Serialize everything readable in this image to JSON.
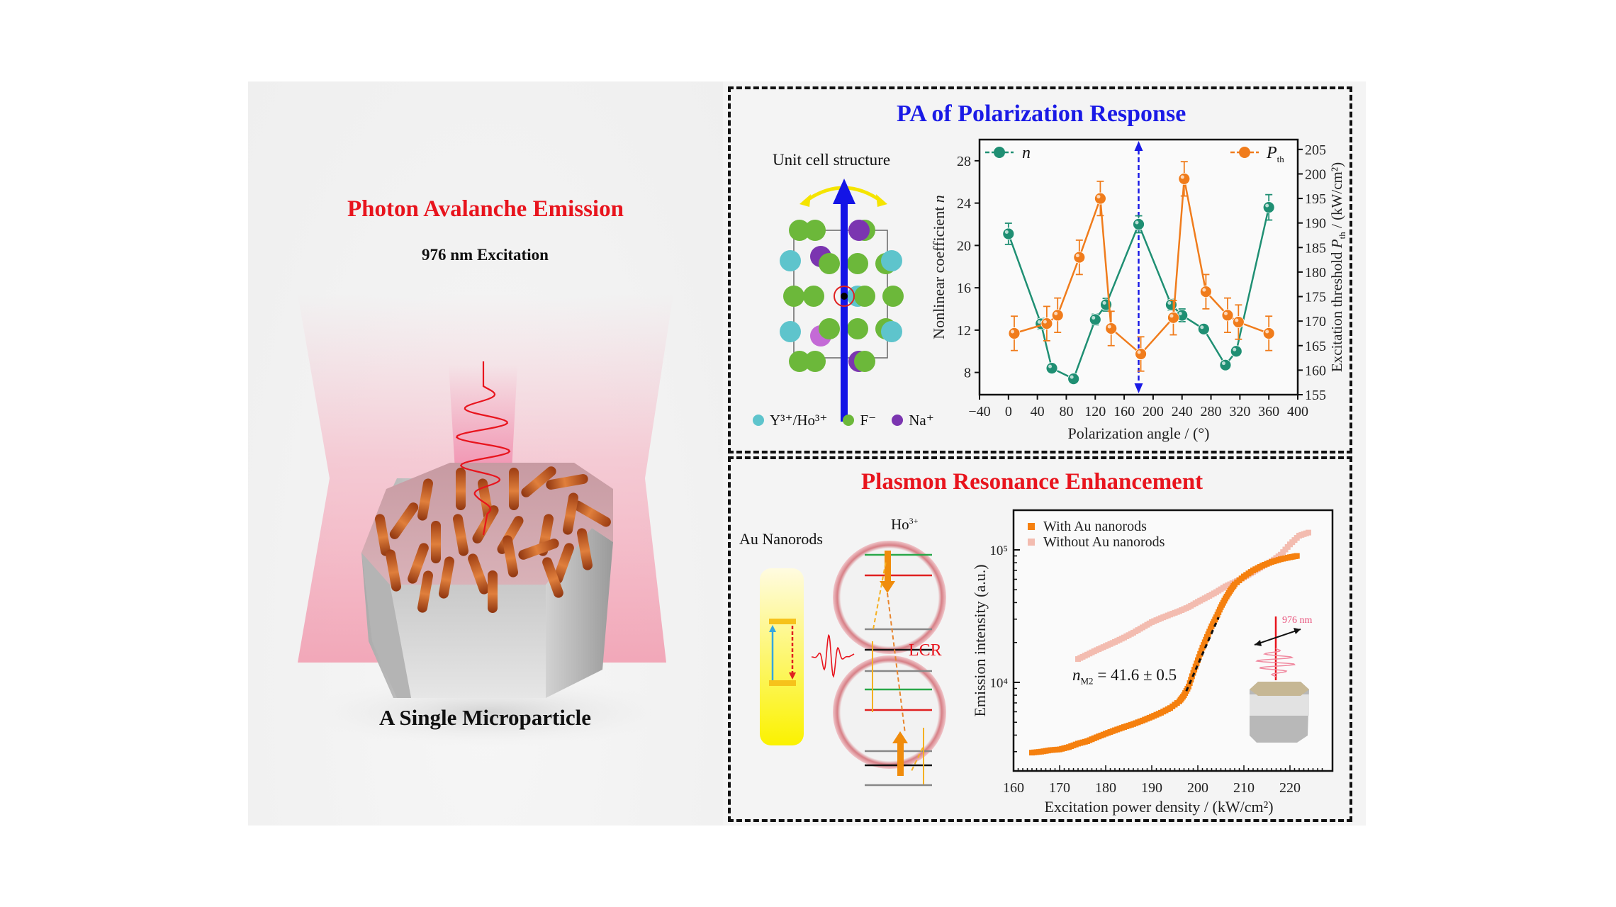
{
  "left_panel": {
    "title": "Photon Avalanche Emission",
    "excitation_label": "976 nm Excitation",
    "caption": "A Single Microparticle",
    "colors": {
      "title": "#e8141d",
      "beam": "#f4a6b8",
      "nanorod": "#c8561c"
    }
  },
  "top_panel": {
    "title": "PA of Polarization Response",
    "unit_cell_label": "Unit cell structure",
    "legend_atoms": [
      {
        "label": "Y³⁺/Ho³⁺",
        "color": "#5ec4cc"
      },
      {
        "label": "F⁻",
        "color": "#6cb83a"
      },
      {
        "label": "Na⁺",
        "color": "#7b35b0"
      }
    ]
  },
  "bottom_panel": {
    "title": "Plasmon Resonance Enhancement",
    "au_label": "Au Nanorods",
    "ion_label": "Ho",
    "ion_charge": "3+",
    "lcr_label": "LCR",
    "fit_label_n": "n",
    "fit_label_sub": "M2",
    "fit_label_value": " = 41.6 ± 0.5",
    "inset_label": "976 nm"
  },
  "chart_data": [
    {
      "type": "scatter",
      "title": "PA of Polarization Response",
      "xlabel": "Polarization angle / (°)",
      "ylabel": "Nonlinear coefficient n",
      "y2label": "Excitation threshold P_th / (kW/cm²)",
      "xlim": [
        -40,
        400
      ],
      "ylim": [
        5.9,
        30
      ],
      "y2lim": [
        155,
        207
      ],
      "xticks": [
        -40,
        0,
        40,
        80,
        120,
        160,
        200,
        240,
        280,
        320,
        360,
        400
      ],
      "yticks": [
        8,
        12,
        16,
        20,
        24,
        28
      ],
      "y2ticks": [
        155,
        160,
        165,
        170,
        175,
        180,
        185,
        190,
        195,
        200,
        205
      ],
      "legend": [
        {
          "label": "n",
          "position": "top-left"
        },
        {
          "label": "P_th",
          "position": "top-right"
        }
      ],
      "marker_line": {
        "x": 180,
        "style": "dashed-double-arrow",
        "color": "#1a1ae6"
      },
      "series": [
        {
          "name": "n",
          "axis": "left",
          "color": "#1f8f73",
          "x": [
            0,
            45,
            60,
            90,
            120,
            135,
            180,
            225,
            240,
            270,
            300,
            315,
            360
          ],
          "y": [
            21.1,
            12.6,
            8.4,
            7.4,
            13.0,
            14.4,
            22.0,
            14.4,
            13.4,
            12.1,
            8.7,
            10.0,
            23.6
          ],
          "err": [
            1.0,
            0.5,
            0.3,
            0.3,
            0.5,
            0.6,
            0.8,
            0.5,
            0.6,
            0.4,
            0.3,
            0.4,
            1.2
          ]
        },
        {
          "name": "P_th",
          "axis": "right",
          "color": "#f07c1c",
          "x": [
            8,
            53,
            68,
            98,
            127,
            142,
            183,
            228,
            243,
            273,
            303,
            318,
            360
          ],
          "y": [
            167.5,
            169.5,
            171.2,
            183.0,
            195.0,
            168.5,
            163.3,
            170.7,
            199.0,
            176.0,
            171.2,
            169.8,
            167.5
          ],
          "err": [
            3.5,
            3.5,
            3.5,
            3.5,
            3.5,
            3.5,
            3.5,
            3.5,
            3.5,
            3.5,
            3.5,
            3.5,
            3.5
          ]
        }
      ]
    },
    {
      "type": "scatter",
      "title": "Plasmon Resonance Enhancement",
      "xlabel": "Excitation power density / (kW/cm²)",
      "ylabel": "Emission intensity (a.u.)",
      "yscale": "log",
      "xlim": [
        160,
        227
      ],
      "ylim": [
        2300,
        150000
      ],
      "xticks": [
        160,
        170,
        180,
        190,
        200,
        210,
        220
      ],
      "yticks": [
        {
          "value": 10000,
          "label": "10⁴"
        },
        {
          "value": 100000,
          "label": "10⁵"
        }
      ],
      "legend_position": "top-left",
      "annotation": "n_M2 = 41.6 ± 0.5",
      "series": [
        {
          "name": "With Au nanorods",
          "color": "#f5800f",
          "x": [
            164,
            166,
            168,
            170,
            172,
            174,
            176,
            178,
            180,
            182,
            184,
            186,
            188,
            190,
            192,
            194,
            196,
            197,
            198,
            199,
            200,
            201,
            202,
            203,
            204,
            205,
            206,
            207,
            208,
            210,
            212,
            214,
            216,
            218,
            220,
            221.5
          ],
          "y": [
            2950,
            3000,
            3080,
            3120,
            3250,
            3450,
            3600,
            3850,
            4100,
            4350,
            4600,
            4850,
            5150,
            5500,
            5900,
            6400,
            7200,
            8000,
            9300,
            11800,
            14700,
            18300,
            22000,
            26500,
            31000,
            37000,
            43000,
            49000,
            55000,
            63000,
            70000,
            76000,
            81000,
            85000,
            88000,
            90000
          ]
        },
        {
          "name": "Without Au nanorods",
          "color": "#f3bcb0",
          "x": [
            174,
            176,
            178,
            180,
            182,
            184,
            186,
            188,
            190,
            192,
            194,
            196,
            198,
            200,
            202,
            204,
            206,
            208,
            210,
            212,
            214,
            216,
            218,
            220,
            222,
            224
          ],
          "y": [
            15000,
            16200,
            17500,
            18800,
            20200,
            21800,
            23700,
            26000,
            28500,
            30500,
            32500,
            34500,
            37000,
            40500,
            44000,
            48000,
            53000,
            57000,
            62000,
            68000,
            75000,
            82000,
            92000,
            110000,
            128000,
            135000
          ]
        }
      ]
    }
  ]
}
